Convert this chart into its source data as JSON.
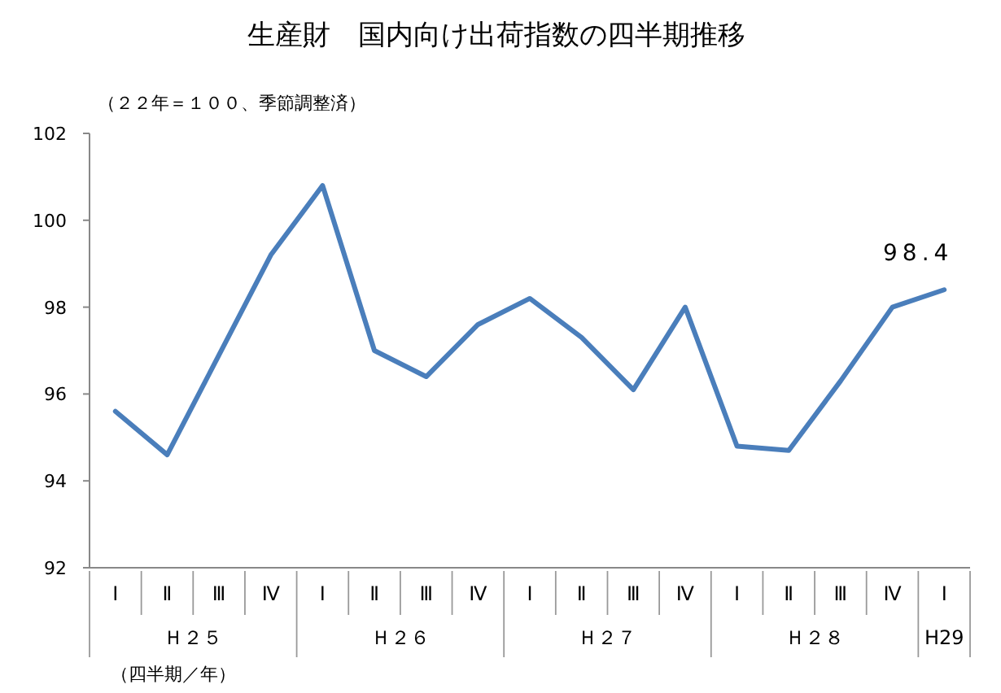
{
  "chart_data": {
    "type": "line",
    "title": "生産財　国内向け出荷指数の四半期推移",
    "subtitle": "（２２年＝１００、季節調整済）",
    "categories": [
      "Ⅰ",
      "Ⅱ",
      "Ⅲ",
      "Ⅳ",
      "Ⅰ",
      "Ⅱ",
      "Ⅲ",
      "Ⅳ",
      "Ⅰ",
      "Ⅱ",
      "Ⅲ",
      "Ⅳ",
      "Ⅰ",
      "Ⅱ",
      "Ⅲ",
      "Ⅳ",
      "Ⅰ"
    ],
    "series": [
      {
        "color": "#4a7ebb",
        "values": [
          95.6,
          94.6,
          96.9,
          99.2,
          100.8,
          97.0,
          96.4,
          97.6,
          98.2,
          97.3,
          96.1,
          98.0,
          94.8,
          94.7,
          96.3,
          98.0,
          98.4
        ],
        "value_labels": [
          null,
          null,
          null,
          null,
          null,
          null,
          null,
          null,
          null,
          null,
          null,
          null,
          null,
          null,
          null,
          null,
          "98.4"
        ]
      }
    ],
    "annotations": [
      "Ｈ２５",
      "Ｈ２６",
      "Ｈ２７",
      "Ｈ２８",
      "H29",
      "（四半期／年）"
    ],
    "ylim": [
      92,
      102
    ],
    "yticks": [
      92,
      94,
      96,
      98,
      100,
      102
    ],
    "grid": false,
    "marker": "none",
    "line_style": "solid"
  }
}
